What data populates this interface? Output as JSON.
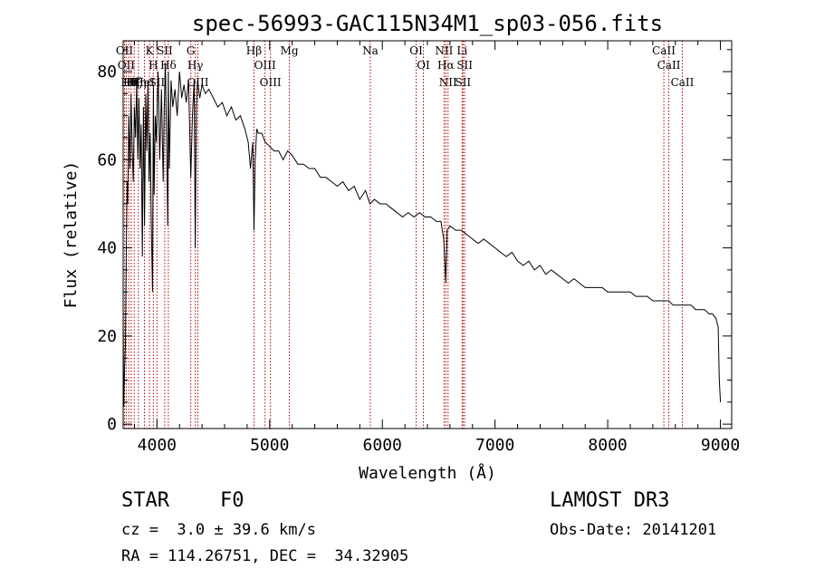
{
  "chart_data": {
    "type": "line",
    "title": "spec-56993-GAC115N34M1_sp03-056.fits",
    "xlabel": "Wavelength (Å)",
    "ylabel": "Flux (relative)",
    "xlim": [
      3700,
      9100
    ],
    "ylim": [
      -1,
      87
    ],
    "xticks": [
      4000,
      5000,
      6000,
      7000,
      8000,
      9000
    ],
    "yticks": [
      0,
      20,
      40,
      60,
      80
    ],
    "grid": false,
    "series": [
      {
        "name": "flux",
        "x": [
          3700,
          3705,
          3712,
          3720,
          3728,
          3735,
          3740,
          3750,
          3760,
          3770,
          3780,
          3790,
          3800,
          3810,
          3820,
          3830,
          3840,
          3850,
          3860,
          3870,
          3880,
          3890,
          3900,
          3910,
          3920,
          3930,
          3940,
          3950,
          3960,
          3968,
          3975,
          3985,
          3995,
          4010,
          4025,
          4040,
          4055,
          4065,
          4075,
          4085,
          4095,
          4101,
          4110,
          4125,
          4140,
          4160,
          4180,
          4200,
          4220,
          4240,
          4260,
          4280,
          4300,
          4315,
          4330,
          4340,
          4350,
          4360,
          4380,
          4400,
          4430,
          4460,
          4500,
          4540,
          4580,
          4620,
          4660,
          4700,
          4740,
          4780,
          4810,
          4830,
          4850,
          4861,
          4872,
          4885,
          4900,
          4930,
          4960,
          5000,
          5040,
          5080,
          5120,
          5160,
          5200,
          5250,
          5300,
          5350,
          5400,
          5450,
          5500,
          5550,
          5600,
          5650,
          5700,
          5750,
          5800,
          5850,
          5890,
          5930,
          5980,
          6030,
          6080,
          6130,
          6180,
          6230,
          6280,
          6330,
          6380,
          6430,
          6480,
          6520,
          6545,
          6563,
          6575,
          6600,
          6650,
          6700,
          6750,
          6800,
          6850,
          6900,
          6950,
          7000,
          7050,
          7100,
          7150,
          7200,
          7250,
          7300,
          7350,
          7400,
          7450,
          7500,
          7550,
          7600,
          7650,
          7700,
          7750,
          7800,
          7850,
          7900,
          7950,
          8000,
          8050,
          8100,
          8150,
          8200,
          8250,
          8300,
          8350,
          8400,
          8450,
          8500,
          8540,
          8580,
          8620,
          8660,
          8700,
          8740,
          8780,
          8820,
          8860,
          8900,
          8930,
          8960,
          8980,
          8990,
          9000
        ],
        "y": [
          26,
          4,
          12,
          18,
          40,
          55,
          50,
          70,
          58,
          75,
          62,
          55,
          72,
          65,
          78,
          60,
          74,
          58,
          68,
          38,
          72,
          45,
          75,
          62,
          78,
          55,
          66,
          45,
          30,
          77,
          52,
          70,
          64,
          80,
          60,
          76,
          55,
          72,
          82,
          65,
          45,
          80,
          58,
          78,
          72,
          76,
          70,
          80,
          74,
          77,
          73,
          78,
          56,
          70,
          78,
          40,
          72,
          78,
          74,
          77,
          75,
          76,
          74,
          72,
          73,
          70,
          72,
          69,
          70,
          67,
          64,
          58,
          64,
          44,
          60,
          67,
          66,
          66,
          64,
          63,
          62,
          62,
          60,
          62,
          61,
          59,
          59,
          58,
          58,
          56,
          56,
          55,
          54,
          55,
          53,
          54,
          51,
          53,
          50,
          51,
          50,
          50,
          49,
          48,
          47,
          48,
          47,
          48,
          47,
          47,
          46,
          46,
          42,
          32,
          44,
          45,
          44,
          44,
          43,
          42,
          41,
          42,
          41,
          40,
          39,
          38,
          39,
          37,
          36,
          37,
          35,
          36,
          34,
          35,
          34,
          33,
          32,
          33,
          32,
          31,
          31,
          31,
          31,
          30,
          30,
          30,
          30,
          30,
          29,
          29,
          29,
          28,
          28,
          28,
          28,
          27,
          27,
          27,
          27,
          27,
          26,
          26,
          26,
          25,
          25,
          24,
          22,
          10,
          5
        ]
      }
    ],
    "lines": [
      {
        "x": 3712,
        "label": "OII"
      },
      {
        "x": 3727,
        "label": "OII"
      },
      {
        "x": 3750,
        "label": "Hθ"
      },
      {
        "x": 3771,
        "label": "Hη"
      },
      {
        "x": 3798,
        "label": "Hζ"
      },
      {
        "x": 3835,
        "label": "Hη"
      },
      {
        "x": 3889,
        "label": "HeI"
      },
      {
        "x": 3934,
        "label": "K"
      },
      {
        "x": 3968,
        "label": "H"
      },
      {
        "x": 4000,
        "label": "SII"
      },
      {
        "x": 4069,
        "label": "SII"
      },
      {
        "x": 4101,
        "label": "Hδ"
      },
      {
        "x": 4300,
        "label": "G"
      },
      {
        "x": 4340,
        "label": "Hγ"
      },
      {
        "x": 4363,
        "label": "OIII"
      },
      {
        "x": 4861,
        "label": "Hβ"
      },
      {
        "x": 4959,
        "label": "OIII"
      },
      {
        "x": 5007,
        "label": "OIII"
      },
      {
        "x": 5175,
        "label": "Mg"
      },
      {
        "x": 5893,
        "label": "Na"
      },
      {
        "x": 6300,
        "label": "OI"
      },
      {
        "x": 6364,
        "label": "OI"
      },
      {
        "x": 6548,
        "label": "NII"
      },
      {
        "x": 6563,
        "label": "Hα"
      },
      {
        "x": 6583,
        "label": "NII"
      },
      {
        "x": 6708,
        "label": "Li"
      },
      {
        "x": 6716,
        "label": "SII"
      },
      {
        "x": 6731,
        "label": "SII"
      },
      {
        "x": 8498,
        "label": "CaII"
      },
      {
        "x": 8542,
        "label": "CaII"
      },
      {
        "x": 8662,
        "label": "CaII"
      }
    ]
  },
  "info": {
    "class_label": "STAR",
    "subclass": "F0",
    "redshift": "cz =  3.0 ± 39.6 km/s",
    "coords": "RA = 114.26751, DEC =  34.32905",
    "survey": "LAMOST DR3",
    "obs_date": "Obs-Date: 20141201"
  }
}
